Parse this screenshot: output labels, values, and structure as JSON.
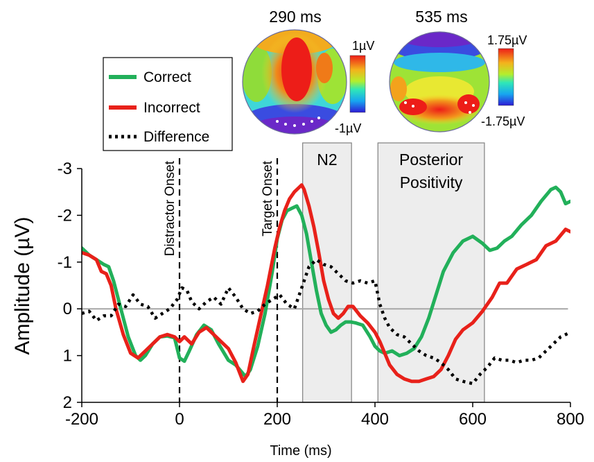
{
  "chart_data": {
    "type": "line",
    "xlabel": "Time (ms)",
    "ylabel": "Amplitude (µV)",
    "xlim": [
      -200,
      800
    ],
    "ylim": [
      -3,
      2
    ],
    "y_inverted": true,
    "x_ticks": [
      {
        "value": -200,
        "label": "-200"
      },
      {
        "value": 0,
        "label": "0"
      },
      {
        "value": 200,
        "label": "200"
      },
      {
        "value": 400,
        "label": "400"
      },
      {
        "value": 600,
        "label": "600"
      },
      {
        "value": 800,
        "label": "800"
      }
    ],
    "y_ticks": [
      {
        "value": -3,
        "label": "-3"
      },
      {
        "value": -2,
        "label": "-2"
      },
      {
        "value": -1,
        "label": "-1"
      },
      {
        "value": 0,
        "label": "0"
      },
      {
        "value": 1,
        "label": "1"
      },
      {
        "value": 2,
        "label": "2"
      }
    ],
    "zero_line": true,
    "legend_position": "top-left",
    "series": [
      {
        "name": "Correct",
        "color": "#22b05a",
        "style": "solid",
        "x": [
          -200,
          -185,
          -170,
          -155,
          -145,
          -135,
          -120,
          -105,
          -90,
          -80,
          -70,
          -55,
          -40,
          -25,
          -10,
          0,
          10,
          20,
          35,
          50,
          65,
          80,
          100,
          115,
          135,
          145,
          160,
          175,
          190,
          200,
          210,
          220,
          230,
          240,
          250,
          260,
          270,
          280,
          290,
          300,
          310,
          320,
          330,
          340,
          350,
          360,
          375,
          390,
          400,
          410,
          420,
          435,
          450,
          465,
          480,
          495,
          510,
          525,
          540,
          560,
          580,
          600,
          620,
          635,
          650,
          665,
          680,
          700,
          720,
          740,
          760,
          770,
          780,
          790,
          800
        ],
        "y": [
          -1.3,
          -1.15,
          -1.05,
          -0.95,
          -0.9,
          -0.6,
          0.0,
          0.6,
          1.0,
          1.1,
          1.0,
          0.75,
          0.6,
          0.58,
          0.62,
          1.05,
          1.12,
          0.9,
          0.55,
          0.35,
          0.45,
          0.75,
          1.1,
          1.2,
          1.45,
          1.3,
          0.8,
          0.1,
          -0.8,
          -1.5,
          -1.9,
          -2.1,
          -2.15,
          -2.2,
          -2.0,
          -1.6,
          -1.0,
          -0.4,
          0.1,
          0.35,
          0.5,
          0.45,
          0.35,
          0.28,
          0.28,
          0.3,
          0.35,
          0.6,
          0.8,
          0.9,
          0.95,
          0.9,
          1.0,
          0.95,
          0.85,
          0.6,
          0.2,
          -0.3,
          -0.8,
          -1.2,
          -1.45,
          -1.55,
          -1.4,
          -1.25,
          -1.3,
          -1.45,
          -1.55,
          -1.8,
          -2.0,
          -2.3,
          -2.55,
          -2.6,
          -2.5,
          -2.25,
          -2.3
        ]
      },
      {
        "name": "Incorrect",
        "color": "#e8211a",
        "style": "solid",
        "x": [
          -200,
          -185,
          -170,
          -160,
          -150,
          -140,
          -130,
          -115,
          -100,
          -85,
          -70,
          -55,
          -40,
          -25,
          -10,
          0,
          10,
          25,
          40,
          55,
          70,
          85,
          100,
          115,
          130,
          140,
          150,
          165,
          180,
          195,
          205,
          215,
          225,
          235,
          245,
          250,
          255,
          265,
          275,
          285,
          295,
          305,
          315,
          325,
          335,
          345,
          355,
          370,
          385,
          400,
          410,
          420,
          430,
          445,
          460,
          475,
          490,
          505,
          520,
          535,
          550,
          565,
          580,
          600,
          620,
          640,
          655,
          670,
          690,
          710,
          730,
          750,
          770,
          790,
          800
        ],
        "y": [
          -1.2,
          -1.15,
          -1.05,
          -0.8,
          -0.75,
          -0.5,
          0.0,
          0.55,
          0.95,
          1.05,
          0.9,
          0.75,
          0.6,
          0.55,
          0.6,
          0.7,
          0.6,
          0.75,
          0.5,
          0.4,
          0.55,
          0.7,
          0.85,
          1.15,
          1.55,
          1.4,
          0.9,
          0.2,
          -0.5,
          -1.3,
          -1.75,
          -2.1,
          -2.35,
          -2.5,
          -2.6,
          -2.65,
          -2.55,
          -2.2,
          -1.75,
          -1.2,
          -0.6,
          -0.2,
          0.1,
          0.2,
          0.1,
          -0.05,
          -0.05,
          0.15,
          0.3,
          0.5,
          0.7,
          0.95,
          1.2,
          1.4,
          1.5,
          1.55,
          1.55,
          1.5,
          1.45,
          1.3,
          1.0,
          0.65,
          0.45,
          0.3,
          0.05,
          -0.25,
          -0.55,
          -0.55,
          -0.85,
          -0.95,
          -1.05,
          -1.35,
          -1.45,
          -1.7,
          -1.65
        ]
      },
      {
        "name": "Difference",
        "color": "#000000",
        "style": "dotted",
        "x": [
          -200,
          -185,
          -170,
          -155,
          -140,
          -125,
          -110,
          -95,
          -80,
          -65,
          -50,
          -35,
          -20,
          -5,
          5,
          15,
          25,
          40,
          55,
          70,
          85,
          100,
          115,
          130,
          145,
          160,
          175,
          190,
          205,
          220,
          235,
          250,
          265,
          280,
          295,
          310,
          325,
          340,
          355,
          370,
          385,
          400,
          410,
          420,
          430,
          445,
          460,
          475,
          490,
          505,
          520,
          535,
          550,
          565,
          580,
          600,
          615,
          630,
          645,
          660,
          675,
          690,
          705,
          720,
          735,
          750,
          765,
          780,
          790,
          800
        ],
        "y": [
          0.1,
          0.05,
          0.25,
          0.15,
          0.15,
          -0.1,
          -0.05,
          -0.3,
          -0.1,
          -0.05,
          0.2,
          0.1,
          0.0,
          -0.2,
          -0.45,
          -0.4,
          -0.15,
          0.0,
          -0.15,
          -0.25,
          -0.1,
          -0.45,
          -0.25,
          0.0,
          0.1,
          0.05,
          -0.1,
          -0.2,
          -0.3,
          -0.1,
          0.0,
          -0.45,
          -0.9,
          -1.05,
          -0.95,
          -0.9,
          -0.75,
          -0.6,
          -0.55,
          -0.6,
          -0.55,
          -0.6,
          -0.1,
          0.2,
          0.4,
          0.55,
          0.6,
          0.75,
          0.9,
          1.0,
          1.05,
          1.15,
          1.3,
          1.5,
          1.55,
          1.6,
          1.4,
          1.25,
          1.05,
          1.1,
          1.1,
          1.15,
          1.1,
          1.1,
          1.05,
          0.9,
          0.75,
          0.6,
          0.55,
          0.5
        ]
      }
    ],
    "shaded_windows": [
      {
        "label_lines": [
          "N2"
        ],
        "x_start": 252,
        "x_end": 352,
        "color": "#ededed"
      },
      {
        "label_lines": [
          "Posterior",
          "Positivity"
        ],
        "x_start": 406,
        "x_end": 624,
        "color": "#ededed"
      }
    ],
    "event_markers": [
      {
        "x": 0,
        "label": "Distractor Onset",
        "style": "dashed"
      },
      {
        "x": 200,
        "label": "Target Onset",
        "style": "dashed"
      }
    ],
    "topographic_maps": [
      {
        "time_label": "290 ms",
        "scale_max": "1µV",
        "scale_min": "-1µV"
      },
      {
        "time_label": "535 ms",
        "scale_max": "1.75µV",
        "scale_min": "-1.75µV"
      }
    ]
  }
}
